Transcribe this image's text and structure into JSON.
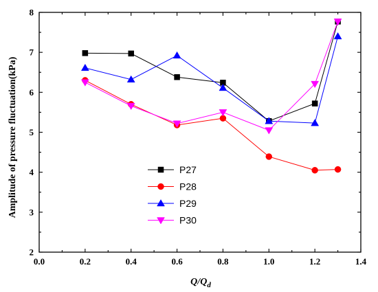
{
  "chart_data": {
    "type": "line",
    "title": "",
    "xlabel": "Q/Qd",
    "xlabel_parts": {
      "main": "Q",
      "sep": "/",
      "q": "Q",
      "sub": "d"
    },
    "ylabel": "Amplitude of pressure fluctuation(kPa)",
    "xlim": [
      0.0,
      1.4
    ],
    "ylim": [
      2,
      8
    ],
    "xticks": [
      "0.0",
      "0.2",
      "0.4",
      "0.6",
      "0.8",
      "1.0",
      "1.2",
      "1.4"
    ],
    "yticks": [
      "2",
      "3",
      "4",
      "5",
      "6",
      "7",
      "8"
    ],
    "grid": false,
    "legend_position": "lower-left",
    "x": [
      0.2,
      0.4,
      0.6,
      0.8,
      1.0,
      1.2,
      1.3
    ],
    "series": [
      {
        "name": "P27",
        "color": "#000000",
        "marker": "square",
        "values": [
          6.98,
          6.97,
          6.38,
          6.24,
          5.28,
          5.72,
          7.77
        ]
      },
      {
        "name": "P28",
        "color": "#ff0000",
        "marker": "circle",
        "values": [
          6.3,
          5.7,
          5.18,
          5.35,
          4.39,
          4.05,
          4.07
        ]
      },
      {
        "name": "P29",
        "color": "#0000ff",
        "marker": "triangle-up",
        "values": [
          6.61,
          6.32,
          6.92,
          6.11,
          5.28,
          5.23,
          7.4
        ]
      },
      {
        "name": "P30",
        "color": "#ff00ff",
        "marker": "triangle-down",
        "values": [
          6.25,
          5.66,
          5.22,
          5.5,
          5.05,
          6.21,
          7.77
        ]
      }
    ]
  }
}
